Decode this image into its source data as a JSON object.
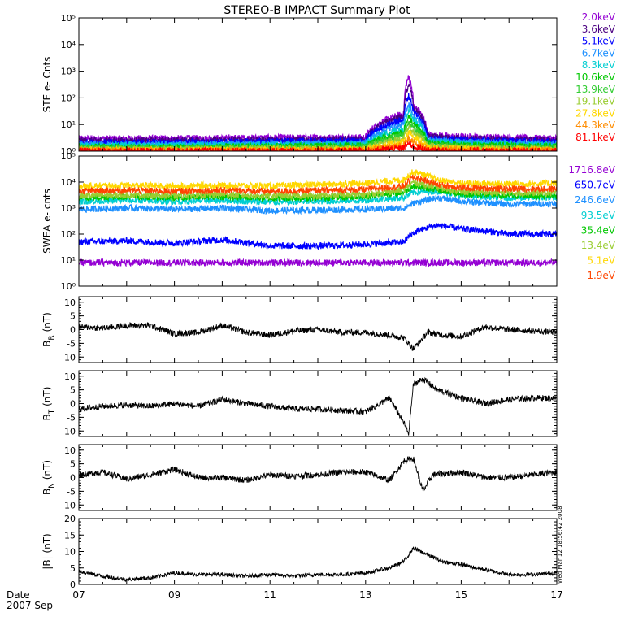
{
  "title": "STEREO-B IMPACT Summary Plot",
  "date_label": "Date",
  "date_sublabel": "2007 Sep",
  "timestamp": "Wed Mar 12 18:56:42 2008",
  "x_ticks": [
    "07",
    "09",
    "11",
    "13",
    "15",
    "17"
  ],
  "x_range_days": [
    7,
    17
  ],
  "chart_data": [
    {
      "type": "line",
      "ylabel": "STE e- Cnts",
      "yscale": "log",
      "ylim": [
        1,
        100000
      ],
      "y_ticks": [
        "10⁰",
        "10¹",
        "10²",
        "10³",
        "10⁴",
        "10⁵"
      ],
      "x": [
        7,
        9,
        11,
        13,
        13.8,
        13.9,
        14,
        14.3,
        15,
        17
      ],
      "series": [
        {
          "name": "2.0keV",
          "color": "#9400d3",
          "values": [
            3,
            3,
            3.2,
            3.3,
            25,
            600,
            50,
            4,
            3.5,
            3
          ]
        },
        {
          "name": "3.6keV",
          "color": "#4b0082",
          "values": [
            2.5,
            2.5,
            2.7,
            2.8,
            20,
            300,
            40,
            3.5,
            3,
            2.5
          ]
        },
        {
          "name": "5.1keV",
          "color": "#0000ff",
          "values": [
            2.1,
            2.1,
            2.3,
            2.4,
            15,
            120,
            30,
            3,
            2.6,
            2.2
          ]
        },
        {
          "name": "6.7keV",
          "color": "#1e90ff",
          "values": [
            1.8,
            1.8,
            1.9,
            2,
            10,
            60,
            20,
            2.6,
            2.2,
            1.9
          ]
        },
        {
          "name": "8.3keV",
          "color": "#00ced1",
          "values": [
            1.6,
            1.6,
            1.7,
            1.8,
            7,
            35,
            15,
            2.3,
            2,
            1.7
          ]
        },
        {
          "name": "10.6keV",
          "color": "#00c800",
          "values": [
            1.4,
            1.4,
            1.5,
            1.6,
            5,
            20,
            10,
            2,
            1.7,
            1.5
          ]
        },
        {
          "name": "13.9keV",
          "color": "#32cd32",
          "values": [
            1.3,
            1.3,
            1.35,
            1.4,
            4,
            12,
            7,
            1.7,
            1.5,
            1.3
          ]
        },
        {
          "name": "19.1keV",
          "color": "#9acd32",
          "values": [
            1.2,
            1.2,
            1.25,
            1.3,
            3,
            8,
            5,
            1.5,
            1.35,
            1.2
          ]
        },
        {
          "name": "27.8keV",
          "color": "#ffd700",
          "values": [
            1.1,
            1.1,
            1.12,
            1.15,
            2.2,
            5,
            3.5,
            1.3,
            1.2,
            1.1
          ]
        },
        {
          "name": "44.3keV",
          "color": "#ff8c00",
          "values": [
            1.05,
            1.05,
            1.06,
            1.08,
            1.6,
            3,
            2.2,
            1.15,
            1.1,
            1.05
          ]
        },
        {
          "name": "81.1keV",
          "color": "#ff0000",
          "values": [
            1.02,
            1.02,
            1.02,
            1.03,
            1.3,
            2,
            1.5,
            1.05,
            1.03,
            1.02
          ]
        }
      ]
    },
    {
      "type": "line",
      "ylabel": "SWEA e- cnts",
      "yscale": "log",
      "ylim": [
        1,
        100000
      ],
      "y_ticks": [
        "10⁰",
        "10¹",
        "10²",
        "10³",
        "10⁴",
        "10⁵"
      ],
      "x": [
        7,
        8,
        9,
        10,
        11,
        12,
        13,
        13.8,
        14,
        14.5,
        15,
        16,
        17
      ],
      "series": [
        {
          "name": "1716.8eV",
          "color": "#9400d3",
          "values": [
            8,
            8,
            8,
            8,
            8,
            8,
            8,
            8,
            8,
            8,
            8,
            8,
            8
          ]
        },
        {
          "name": "650.7eV",
          "color": "#0000ff",
          "values": [
            50,
            55,
            45,
            60,
            35,
            35,
            40,
            50,
            110,
            220,
            160,
            100,
            100
          ]
        },
        {
          "name": "246.6eV",
          "color": "#1e90ff",
          "values": [
            900,
            1000,
            900,
            1000,
            800,
            850,
            900,
            1000,
            1500,
            2500,
            1800,
            1400,
            1500
          ]
        },
        {
          "name": "93.5eV",
          "color": "#00ced1",
          "values": [
            1800,
            2000,
            1800,
            2000,
            1700,
            1800,
            2000,
            2500,
            4000,
            4500,
            3000,
            2500,
            2500
          ]
        },
        {
          "name": "35.4eV",
          "color": "#00c800",
          "values": [
            2500,
            2800,
            2500,
            2800,
            2400,
            2500,
            2800,
            4000,
            7000,
            5000,
            3500,
            3000,
            3000
          ]
        },
        {
          "name": "13.4eV",
          "color": "#9acd32",
          "values": [
            3000,
            3200,
            3000,
            3300,
            2900,
            3000,
            3300,
            5000,
            10000,
            6000,
            4200,
            3800,
            3800
          ]
        },
        {
          "name": "5.1eV",
          "color": "#ffd700",
          "values": [
            7000,
            7500,
            7000,
            7500,
            7000,
            8000,
            9000,
            12000,
            25000,
            12000,
            9000,
            8500,
            9000
          ]
        },
        {
          "name": "1.9eV",
          "color": "#ff4500",
          "values": [
            4500,
            4800,
            4500,
            4800,
            4400,
            4800,
            5200,
            7000,
            15000,
            8000,
            6000,
            5500,
            5500
          ]
        }
      ]
    },
    {
      "type": "line",
      "ylabel": "B_R (nT)",
      "ylabel_main": "B",
      "ylabel_sub": "R",
      "ylabel_unit": " (nT)",
      "ylim": [
        -12,
        12
      ],
      "y_ticks": [
        "-10",
        "-5",
        "0",
        "5",
        "10"
      ],
      "y_tick_values": [
        -10,
        -5,
        0,
        5,
        10
      ],
      "x": [
        7,
        7.5,
        8,
        8.5,
        9,
        9.5,
        10,
        10.5,
        11,
        11.5,
        12,
        12.5,
        13,
        13.5,
        13.8,
        14,
        14.3,
        14.6,
        15,
        15.5,
        16,
        16.5,
        17
      ],
      "series": [
        {
          "name": "",
          "color": "#000000",
          "values": [
            1,
            0.5,
            1.5,
            1.5,
            -1.5,
            -1,
            1.5,
            -1,
            -2,
            -0.5,
            0,
            -1,
            -1,
            -2,
            -3,
            -7,
            -1,
            -2,
            -2.5,
            1,
            0,
            -0.5,
            -1
          ]
        }
      ]
    },
    {
      "type": "line",
      "ylabel": "B_T (nT)",
      "ylabel_main": "B",
      "ylabel_sub": "T",
      "ylabel_unit": " (nT)",
      "ylim": [
        -12,
        12
      ],
      "y_ticks": [
        "-10",
        "-5",
        "0",
        "5",
        "10"
      ],
      "y_tick_values": [
        -10,
        -5,
        0,
        5,
        10
      ],
      "x": [
        7,
        7.5,
        8,
        8.5,
        9,
        9.5,
        10,
        10.5,
        11,
        11.5,
        12,
        12.5,
        13,
        13.5,
        13.8,
        13.9,
        14,
        14.2,
        14.5,
        15,
        15.5,
        16,
        16.5,
        17
      ],
      "series": [
        {
          "name": "",
          "color": "#000000",
          "values": [
            -2,
            -1,
            -0.5,
            -1,
            0,
            -1,
            1.5,
            0,
            -1,
            -2,
            -2,
            -2.5,
            -3,
            2,
            -7,
            -11,
            7,
            9,
            5,
            2,
            0,
            1.5,
            2,
            2
          ]
        }
      ]
    },
    {
      "type": "line",
      "ylabel": "B_N (nT)",
      "ylabel_main": "B",
      "ylabel_sub": "N",
      "ylabel_unit": " (nT)",
      "ylim": [
        -12,
        12
      ],
      "y_ticks": [
        "-10",
        "-5",
        "0",
        "5",
        "10"
      ],
      "y_tick_values": [
        -10,
        -5,
        0,
        5,
        10
      ],
      "x": [
        7,
        7.5,
        8,
        8.5,
        9,
        9.5,
        10,
        10.5,
        11,
        11.5,
        12,
        12.5,
        13,
        13.5,
        13.8,
        14,
        14.2,
        14.4,
        15,
        15.5,
        16,
        16.5,
        17
      ],
      "series": [
        {
          "name": "",
          "color": "#000000",
          "values": [
            1,
            2,
            -0.5,
            1,
            3,
            0,
            0,
            -1,
            1,
            0.5,
            1,
            2,
            2,
            -1,
            6,
            7,
            -5,
            1,
            2,
            0,
            0,
            1,
            2
          ]
        }
      ]
    },
    {
      "type": "line",
      "ylabel": "|B| (nT)",
      "ylim": [
        0,
        20
      ],
      "y_ticks": [
        "0",
        "5",
        "10",
        "15",
        "20"
      ],
      "y_tick_values": [
        0,
        5,
        10,
        15,
        20
      ],
      "x": [
        7,
        7.5,
        8,
        8.5,
        9,
        9.5,
        10,
        10.5,
        11,
        11.5,
        12,
        12.5,
        13,
        13.5,
        13.8,
        14,
        14.3,
        14.6,
        15,
        15.5,
        16,
        16.5,
        17
      ],
      "series": [
        {
          "name": "",
          "color": "#000000",
          "values": [
            4,
            2.5,
            1.5,
            2,
            3.5,
            3,
            3,
            2.5,
            3,
            2.5,
            3,
            3,
            3.5,
            5,
            7,
            11,
            9,
            7,
            6,
            4.5,
            3,
            3,
            3.5
          ]
        }
      ]
    }
  ]
}
